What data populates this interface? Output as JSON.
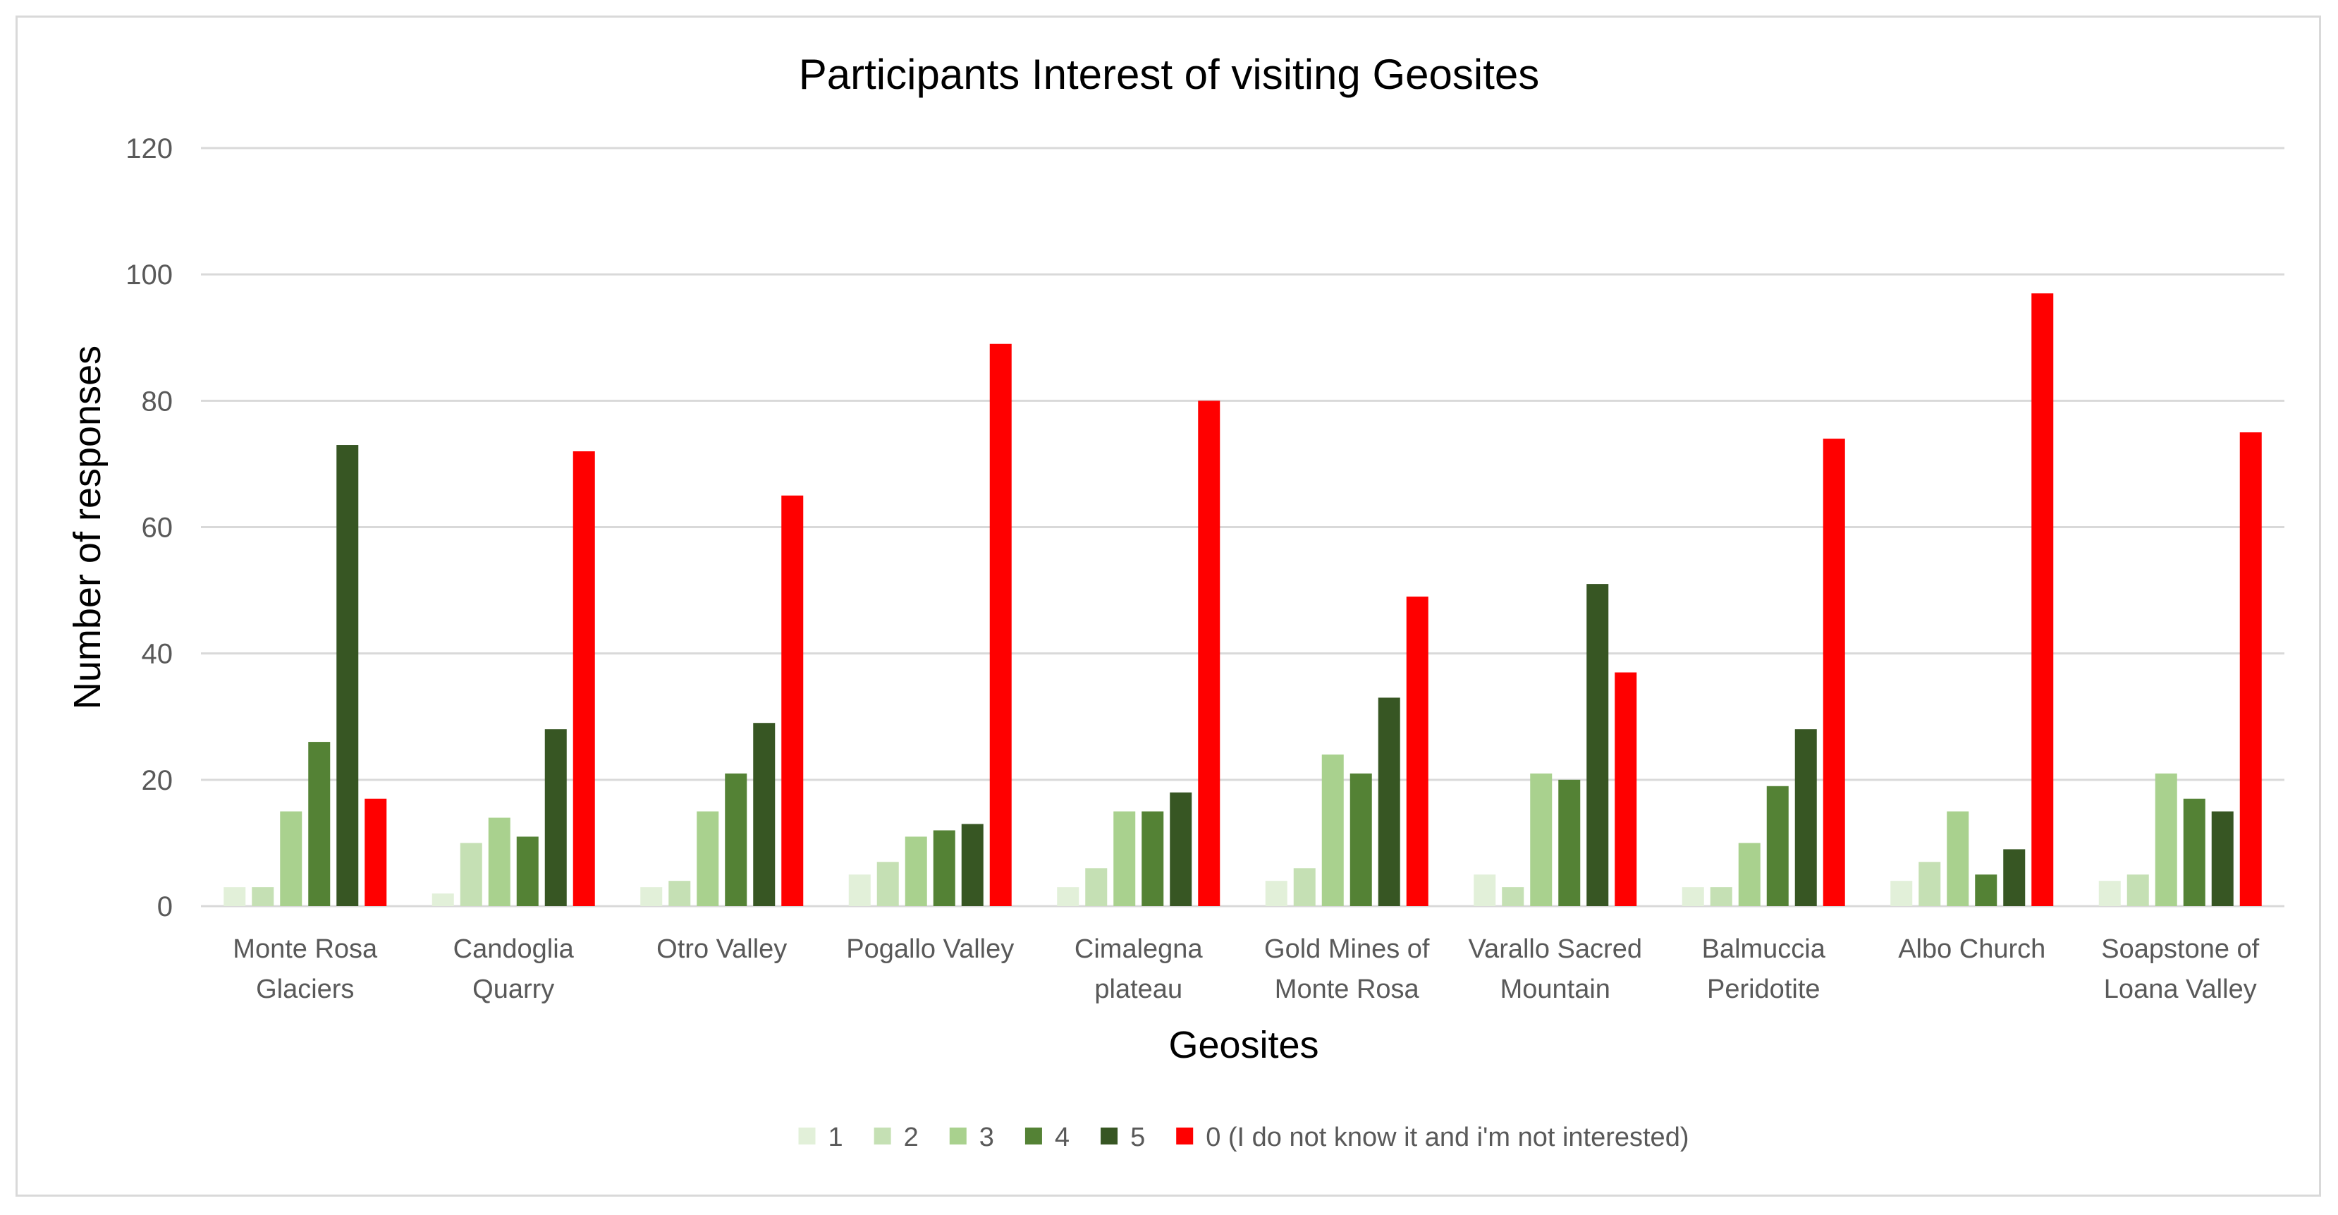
{
  "chart_data": {
    "type": "bar",
    "title": "Participants Interest of visiting Geosites",
    "xlabel": "Geosites",
    "ylabel": "Number of responses",
    "ylim": [
      0,
      120
    ],
    "yticks": [
      0,
      20,
      40,
      60,
      80,
      100,
      120
    ],
    "grid": true,
    "legend_position": "bottom",
    "categories": [
      [
        "Monte Rosa",
        "Glaciers"
      ],
      [
        "Candoglia",
        "Quarry"
      ],
      [
        "Otro Valley"
      ],
      [
        "Pogallo Valley"
      ],
      [
        "Cimalegna",
        "plateau"
      ],
      [
        "Gold Mines of",
        "Monte Rosa"
      ],
      [
        "Varallo Sacred",
        "Mountain"
      ],
      [
        "Balmuccia",
        "Peridotite"
      ],
      [
        "Albo Church"
      ],
      [
        "Soapstone of",
        "Loana Valley"
      ]
    ],
    "series": [
      {
        "name": "1",
        "color": "#e2f0d9",
        "values": [
          3,
          2,
          3,
          5,
          3,
          4,
          5,
          3,
          4,
          4
        ]
      },
      {
        "name": "2",
        "color": "#c5e0b4",
        "values": [
          3,
          10,
          4,
          7,
          6,
          6,
          3,
          3,
          7,
          5
        ]
      },
      {
        "name": "3",
        "color": "#a9d18e",
        "values": [
          15,
          14,
          15,
          11,
          15,
          24,
          21,
          10,
          15,
          21
        ]
      },
      {
        "name": "4",
        "color": "#548235",
        "values": [
          26,
          11,
          21,
          12,
          15,
          21,
          20,
          19,
          5,
          17
        ]
      },
      {
        "name": "5",
        "color": "#375623",
        "values": [
          73,
          28,
          29,
          13,
          18,
          33,
          51,
          28,
          9,
          15
        ]
      },
      {
        "name": "0 (I do not know it and i'm not interested)",
        "color": "#ff0000",
        "values": [
          17,
          72,
          65,
          89,
          80,
          49,
          37,
          74,
          97,
          75
        ]
      }
    ]
  }
}
